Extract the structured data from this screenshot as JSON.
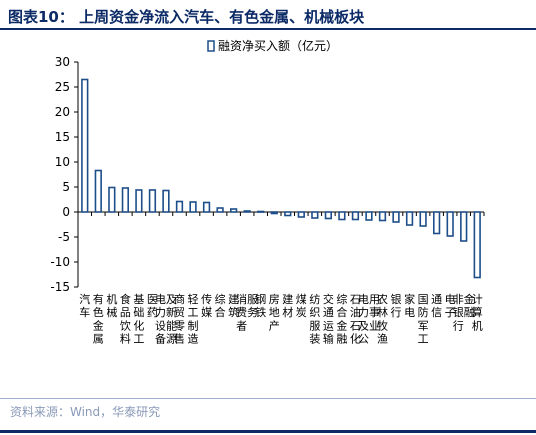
{
  "header": {
    "title": "图表10：   上周资金净流入汽车、有色金属、机械板块"
  },
  "footer": {
    "source": "资料来源：Wind，华泰研究"
  },
  "colors": {
    "bar_fill": "#ffffff",
    "bar_stroke": "#1d4e89",
    "title": "#0b2a66"
  },
  "chart_data": {
    "type": "bar",
    "title": "",
    "xlabel": "",
    "ylabel": "",
    "ylim": [
      -15,
      30
    ],
    "yticks": [
      30,
      25,
      20,
      15,
      10,
      5,
      0,
      -5,
      -10,
      -15
    ],
    "grid": false,
    "legend_position": "top-right",
    "categories": [
      "汽车",
      "有色金属",
      "机械",
      "食品饮料",
      "基础化工",
      "医药",
      "电力设备及新能源",
      "商贸零售",
      "轻工制造",
      "传媒",
      "综合",
      "建筑",
      "消费者服务",
      "钢铁",
      "房地产",
      "建材",
      "煤炭",
      "纺织服装",
      "交通运输",
      "综合金融",
      "石油石化",
      "电力及公用事业",
      "农林牧渔",
      "银行",
      "家电",
      "国防军工",
      "通信",
      "电子",
      "非银行金融",
      "计算机"
    ],
    "series": [
      {
        "name": "融资净买入额（亿元）",
        "values": [
          26.5,
          8.3,
          4.9,
          4.8,
          4.4,
          4.4,
          4.3,
          2.1,
          2.0,
          1.9,
          0.8,
          0.6,
          0.2,
          0.1,
          -0.3,
          -0.7,
          -1.0,
          -1.2,
          -1.3,
          -1.5,
          -1.5,
          -1.6,
          -1.7,
          -2.0,
          -2.6,
          -2.8,
          -4.3,
          -4.8,
          -5.8,
          -13.1
        ]
      }
    ]
  }
}
